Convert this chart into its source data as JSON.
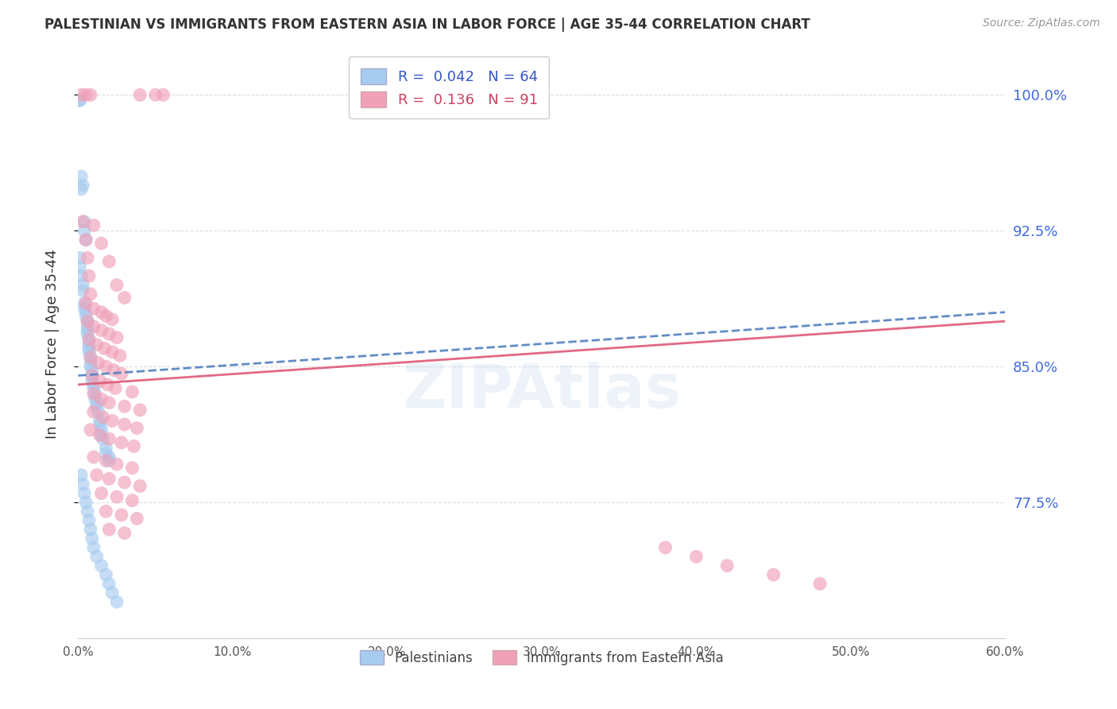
{
  "title": "PALESTINIAN VS IMMIGRANTS FROM EASTERN ASIA IN LABOR FORCE | AGE 35-44 CORRELATION CHART",
  "source": "Source: ZipAtlas.com",
  "ylabel": "In Labor Force | Age 35-44",
  "ytick_labels": [
    "77.5%",
    "85.0%",
    "92.5%",
    "100.0%"
  ],
  "ytick_values": [
    0.775,
    0.85,
    0.925,
    1.0
  ],
  "legend_blue_r": "0.042",
  "legend_blue_n": "64",
  "legend_pink_r": "0.136",
  "legend_pink_n": "91",
  "blue_color": "#A8CCF0",
  "pink_color": "#F0A0B8",
  "trend_blue_color": "#5080C0",
  "trend_pink_color": "#E05878",
  "watermark": "ZIPAtlas",
  "blue_scatter": [
    [
      0.001,
      0.997
    ],
    [
      0.001,
      0.997
    ],
    [
      0.002,
      0.955
    ],
    [
      0.002,
      0.948
    ],
    [
      0.003,
      0.95
    ],
    [
      0.004,
      0.93
    ],
    [
      0.004,
      0.925
    ],
    [
      0.005,
      0.92
    ],
    [
      0.001,
      0.91
    ],
    [
      0.001,
      0.905
    ],
    [
      0.002,
      0.9
    ],
    [
      0.003,
      0.895
    ],
    [
      0.003,
      0.892
    ],
    [
      0.004,
      0.885
    ],
    [
      0.004,
      0.882
    ],
    [
      0.005,
      0.88
    ],
    [
      0.005,
      0.878
    ],
    [
      0.006,
      0.875
    ],
    [
      0.006,
      0.872
    ],
    [
      0.006,
      0.87
    ],
    [
      0.006,
      0.868
    ],
    [
      0.007,
      0.865
    ],
    [
      0.007,
      0.862
    ],
    [
      0.007,
      0.86
    ],
    [
      0.007,
      0.858
    ],
    [
      0.008,
      0.855
    ],
    [
      0.008,
      0.852
    ],
    [
      0.008,
      0.85
    ],
    [
      0.009,
      0.848
    ],
    [
      0.009,
      0.845
    ],
    [
      0.009,
      0.842
    ],
    [
      0.01,
      0.84
    ],
    [
      0.01,
      0.838
    ],
    [
      0.011,
      0.835
    ],
    [
      0.011,
      0.832
    ],
    [
      0.012,
      0.83
    ],
    [
      0.012,
      0.828
    ],
    [
      0.013,
      0.825
    ],
    [
      0.014,
      0.82
    ],
    [
      0.014,
      0.818
    ],
    [
      0.015,
      0.815
    ],
    [
      0.015,
      0.812
    ],
    [
      0.016,
      0.81
    ],
    [
      0.018,
      0.805
    ],
    [
      0.018,
      0.802
    ],
    [
      0.02,
      0.8
    ],
    [
      0.02,
      0.798
    ],
    [
      0.002,
      0.79
    ],
    [
      0.003,
      0.785
    ],
    [
      0.004,
      0.78
    ],
    [
      0.005,
      0.775
    ],
    [
      0.006,
      0.77
    ],
    [
      0.007,
      0.765
    ],
    [
      0.008,
      0.76
    ],
    [
      0.009,
      0.755
    ],
    [
      0.01,
      0.75
    ],
    [
      0.012,
      0.745
    ],
    [
      0.015,
      0.74
    ],
    [
      0.018,
      0.735
    ],
    [
      0.02,
      0.73
    ],
    [
      0.022,
      0.725
    ],
    [
      0.025,
      0.72
    ]
  ],
  "pink_scatter": [
    [
      0.002,
      1.0
    ],
    [
      0.005,
      1.0
    ],
    [
      0.008,
      1.0
    ],
    [
      0.04,
      1.0
    ],
    [
      0.05,
      1.0
    ],
    [
      0.055,
      1.0
    ],
    [
      0.003,
      0.93
    ],
    [
      0.01,
      0.928
    ],
    [
      0.005,
      0.92
    ],
    [
      0.015,
      0.918
    ],
    [
      0.006,
      0.91
    ],
    [
      0.02,
      0.908
    ],
    [
      0.007,
      0.9
    ],
    [
      0.025,
      0.895
    ],
    [
      0.008,
      0.89
    ],
    [
      0.03,
      0.888
    ],
    [
      0.005,
      0.885
    ],
    [
      0.01,
      0.882
    ],
    [
      0.015,
      0.88
    ],
    [
      0.018,
      0.878
    ],
    [
      0.022,
      0.876
    ],
    [
      0.006,
      0.875
    ],
    [
      0.01,
      0.872
    ],
    [
      0.015,
      0.87
    ],
    [
      0.02,
      0.868
    ],
    [
      0.025,
      0.866
    ],
    [
      0.007,
      0.865
    ],
    [
      0.012,
      0.862
    ],
    [
      0.017,
      0.86
    ],
    [
      0.022,
      0.858
    ],
    [
      0.027,
      0.856
    ],
    [
      0.008,
      0.855
    ],
    [
      0.013,
      0.852
    ],
    [
      0.018,
      0.85
    ],
    [
      0.023,
      0.848
    ],
    [
      0.028,
      0.846
    ],
    [
      0.009,
      0.845
    ],
    [
      0.014,
      0.842
    ],
    [
      0.019,
      0.84
    ],
    [
      0.024,
      0.838
    ],
    [
      0.035,
      0.836
    ],
    [
      0.01,
      0.835
    ],
    [
      0.015,
      0.832
    ],
    [
      0.02,
      0.83
    ],
    [
      0.03,
      0.828
    ],
    [
      0.04,
      0.826
    ],
    [
      0.01,
      0.825
    ],
    [
      0.016,
      0.822
    ],
    [
      0.022,
      0.82
    ],
    [
      0.03,
      0.818
    ],
    [
      0.038,
      0.816
    ],
    [
      0.008,
      0.815
    ],
    [
      0.014,
      0.812
    ],
    [
      0.02,
      0.81
    ],
    [
      0.028,
      0.808
    ],
    [
      0.036,
      0.806
    ],
    [
      0.01,
      0.8
    ],
    [
      0.018,
      0.798
    ],
    [
      0.025,
      0.796
    ],
    [
      0.035,
      0.794
    ],
    [
      0.012,
      0.79
    ],
    [
      0.02,
      0.788
    ],
    [
      0.03,
      0.786
    ],
    [
      0.04,
      0.784
    ],
    [
      0.015,
      0.78
    ],
    [
      0.025,
      0.778
    ],
    [
      0.035,
      0.776
    ],
    [
      0.018,
      0.77
    ],
    [
      0.028,
      0.768
    ],
    [
      0.038,
      0.766
    ],
    [
      0.02,
      0.76
    ],
    [
      0.03,
      0.758
    ],
    [
      0.38,
      0.75
    ],
    [
      0.4,
      0.745
    ],
    [
      0.42,
      0.74
    ],
    [
      0.45,
      0.735
    ],
    [
      0.48,
      0.73
    ]
  ],
  "xlim": [
    0.0,
    0.6
  ],
  "ylim": [
    0.7,
    1.025
  ],
  "background_color": "#FFFFFF",
  "grid_color": "#DDDDDD",
  "xtick_positions": [
    0.0,
    0.1,
    0.2,
    0.3,
    0.4,
    0.5,
    0.6
  ],
  "xtick_labels": [
    "0.0%",
    "10.0%",
    "20.0%",
    "30.0%",
    "40.0%",
    "50.0%",
    "60.0%"
  ]
}
